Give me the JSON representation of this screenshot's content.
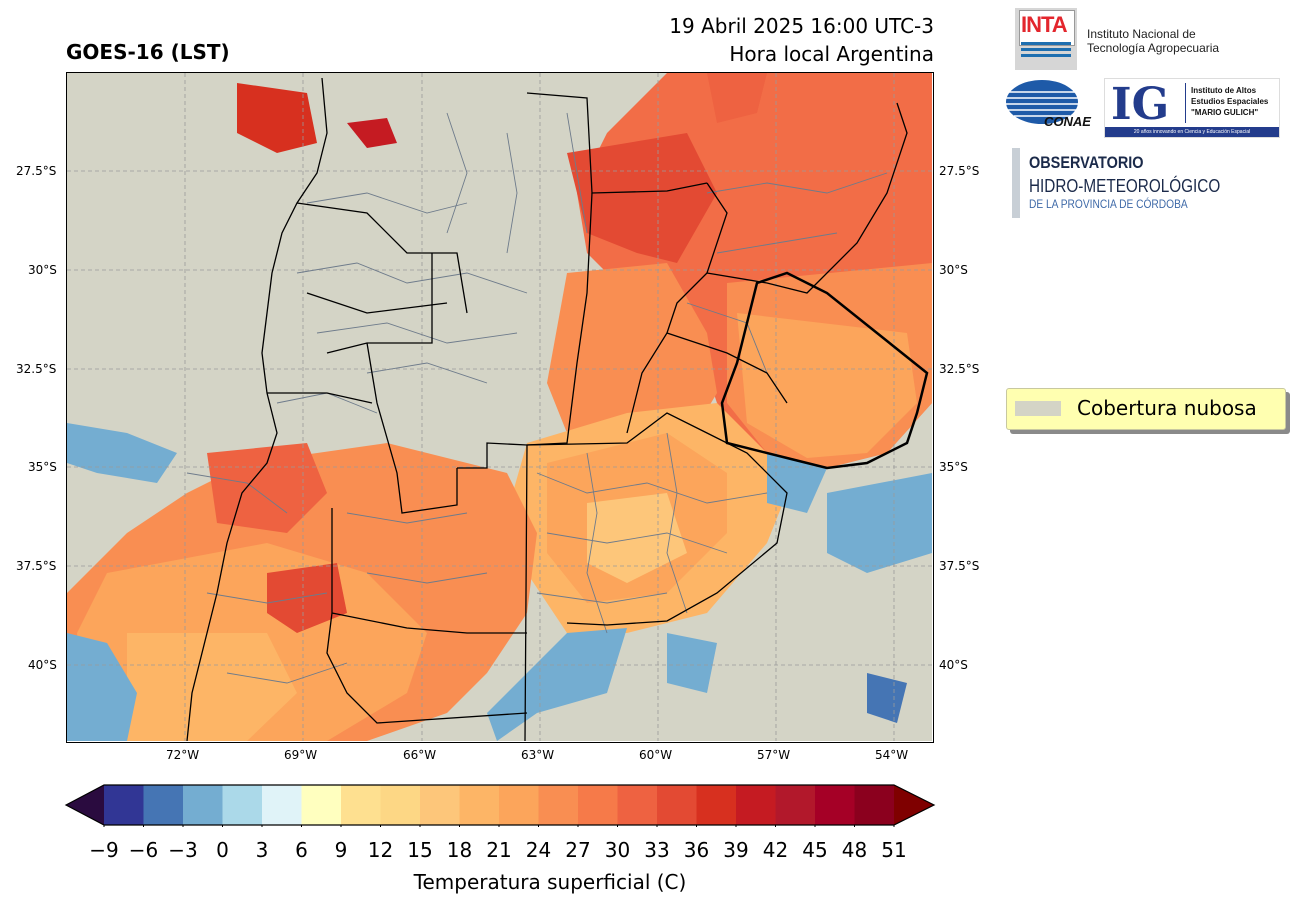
{
  "header": {
    "title": "GOES-16 (LST)",
    "date_line": "19 Abril 2025 16:00 UTC-3",
    "local_line": "Hora local Argentina"
  },
  "map": {
    "lat_labels": [
      "27.5°S",
      "30°S",
      "32.5°S",
      "35°S",
      "37.5°S",
      "40°S"
    ],
    "lon_labels": [
      "72°W",
      "69°W",
      "66°W",
      "63°W",
      "60°W",
      "57°W",
      "54°W"
    ]
  },
  "colorbar": {
    "title": "Temperatura superficial (C)",
    "ticks": [
      "−9",
      "−6",
      "−3",
      "0",
      "3",
      "6",
      "9",
      "12",
      "15",
      "18",
      "21",
      "24",
      "27",
      "30",
      "33",
      "36",
      "39",
      "42",
      "45",
      "48",
      "51"
    ],
    "colors": [
      "#313695",
      "#4575b4",
      "#74add1",
      "#abd9e9",
      "#e0f3f8",
      "#ffffbf",
      "#fee090",
      "#fdd785",
      "#fdc67a",
      "#fdb566",
      "#fca55b",
      "#f98e52",
      "#f67a49",
      "#ee6241",
      "#e34a33",
      "#d7301f",
      "#c51b22",
      "#b2182b",
      "#a50026",
      "#8b001e"
    ],
    "min_arrow": "#2a0b3f",
    "max_arrow": "#7f0000"
  },
  "legend": {
    "label": "Cobertura nubosa",
    "swatch_color": "#d4d4c6"
  },
  "logos": {
    "inta_mark": "INTA",
    "inta_line1": "Instituto Nacional de",
    "inta_line2": "Tecnología Agropecuaria",
    "conae": "CONAE",
    "ig_mark": "IG",
    "ig_line1": "Instituto de Altos",
    "ig_line2": "Estudios Espaciales",
    "ig_line3": "\"MARIO GULICH\"",
    "ig_footer": "20 años innovando en Ciencia y Educación Espacial",
    "obs_line1": "OBSERVATORIO",
    "obs_line2": "HIDRO-METEOROLÓGICO",
    "obs_line3": "DE LA PROVINCIA DE CÓRDOBA"
  }
}
